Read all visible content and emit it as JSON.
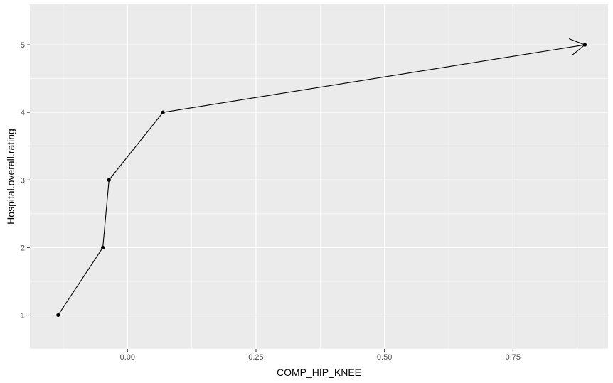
{
  "chart_data": {
    "type": "line",
    "title": "",
    "xlabel": "COMP_HIP_KNEE",
    "ylabel": "Hospital.overall.rating",
    "xlim": [
      -0.19,
      0.935
    ],
    "ylim": [
      0.5,
      5.6
    ],
    "x_ticks": [
      0.0,
      0.25,
      0.5,
      0.75
    ],
    "x_tick_labels": [
      "0.00",
      "0.25",
      "0.50",
      "0.75"
    ],
    "y_ticks": [
      1,
      2,
      3,
      4,
      5
    ],
    "y_tick_labels": [
      "1",
      "2",
      "3",
      "4",
      "5"
    ],
    "grid": true,
    "arrow_at_end": true,
    "series": [
      {
        "x": [
          -0.135,
          -0.048,
          -0.036,
          0.069,
          0.89
        ],
        "y": [
          1,
          2,
          3,
          4,
          5
        ]
      }
    ],
    "colors": {
      "panel": "#ebebeb",
      "grid": "#ffffff",
      "line": "#000000",
      "tick_text": "#4d4d4d",
      "tick_mark": "#333333"
    }
  }
}
